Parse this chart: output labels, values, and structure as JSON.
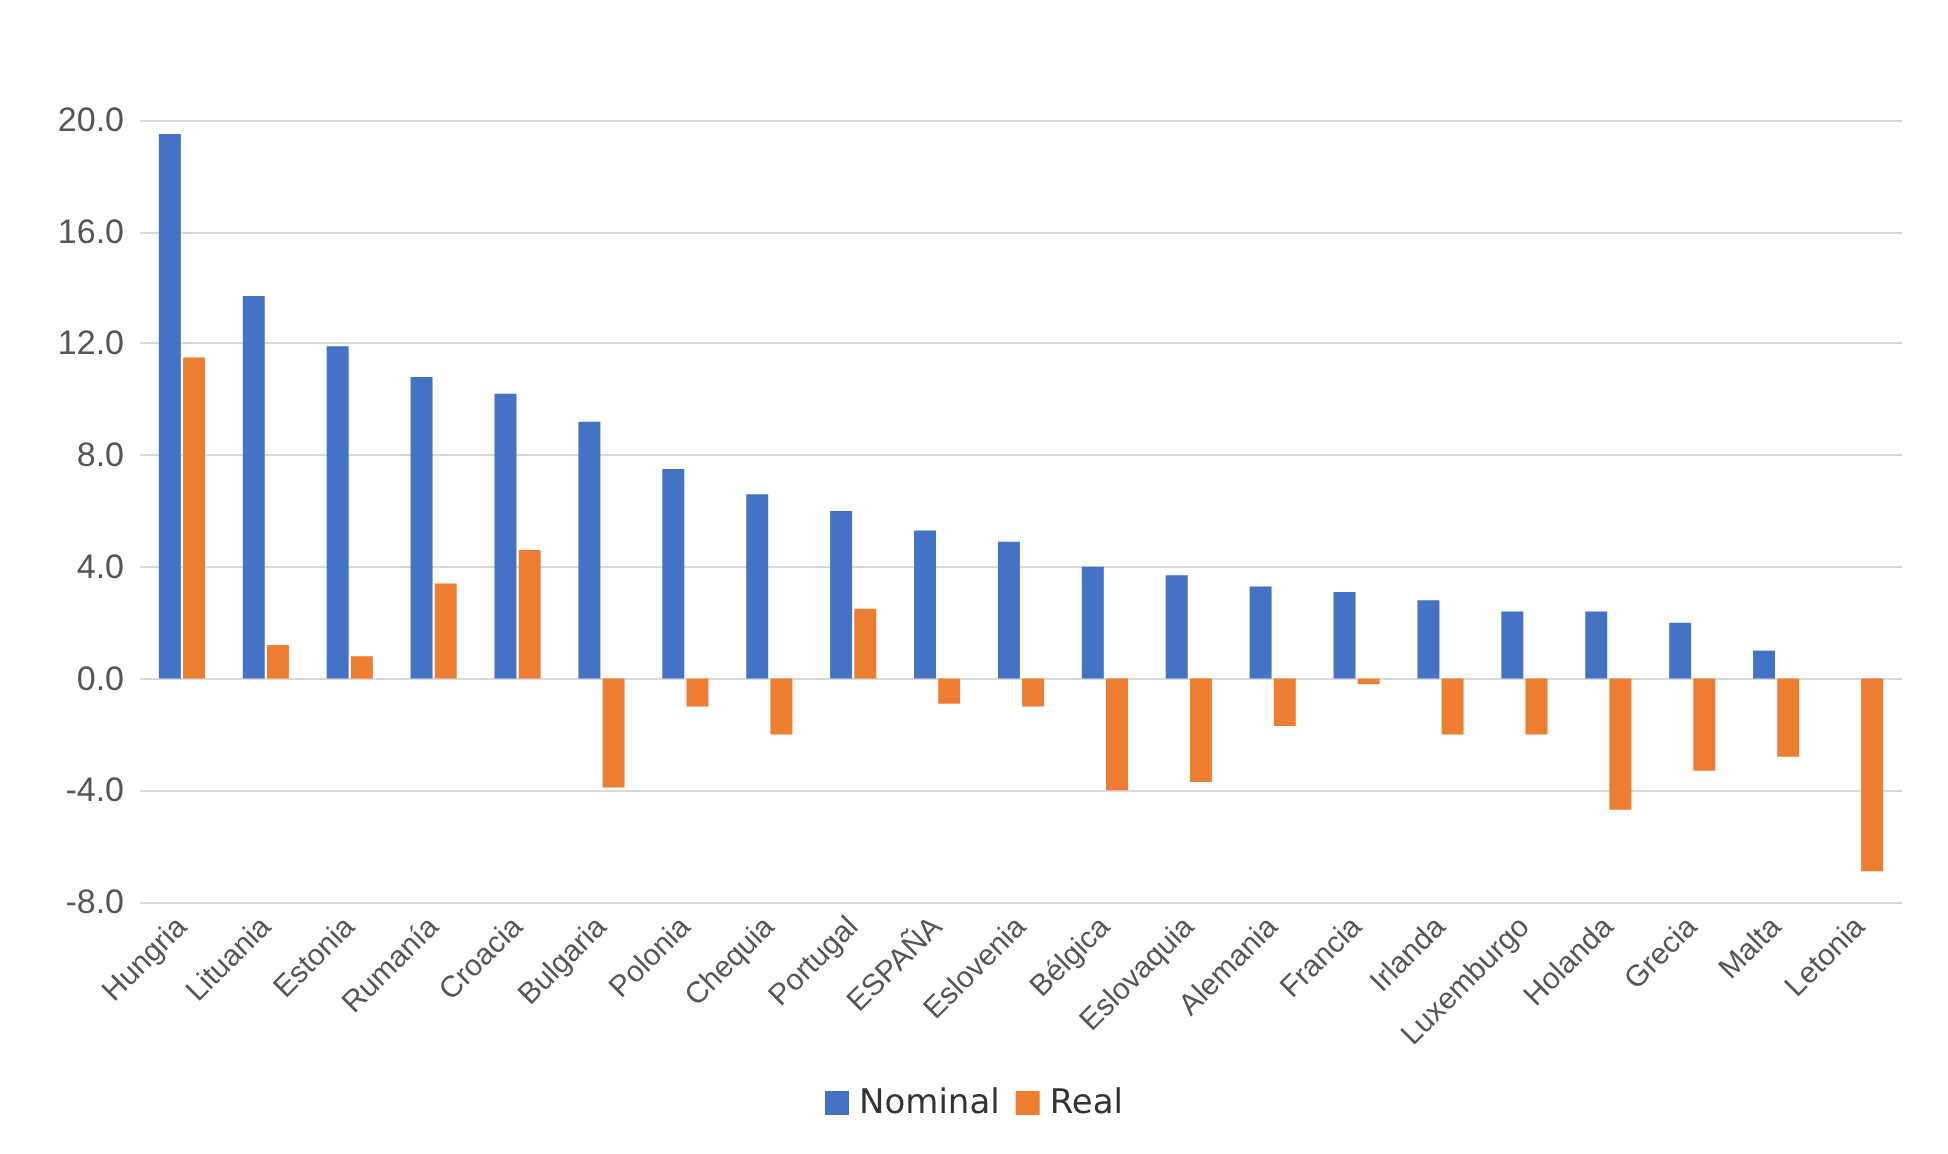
{
  "chart_data": {
    "type": "bar",
    "categories": [
      "Hungria",
      "Lituania",
      "Estonia",
      "Rumanía",
      "Croacia",
      "Bulgaria",
      "Polonia",
      "Chequia",
      "Portugal",
      "ESPAÑA",
      "Eslovenia",
      "Bélgica",
      "Eslovaquia",
      "Alemania",
      "Francia",
      "Irlanda",
      "Luxemburgo",
      "Holanda",
      "Grecia",
      "Malta",
      "Letonia"
    ],
    "series": [
      {
        "name": "Nominal",
        "color": "#4472c4",
        "values": [
          19.5,
          13.7,
          11.9,
          10.8,
          10.2,
          9.2,
          7.5,
          6.6,
          6.0,
          5.3,
          4.9,
          4.0,
          3.7,
          3.3,
          3.1,
          2.8,
          2.4,
          2.4,
          2.0,
          1.0,
          null
        ]
      },
      {
        "name": "Real",
        "color": "#ed7d31",
        "values": [
          11.5,
          1.2,
          0.8,
          3.4,
          4.6,
          -3.9,
          -1.0,
          -2.0,
          2.5,
          -0.9,
          -1.0,
          -4.0,
          -3.7,
          -1.7,
          -0.2,
          -2.0,
          -2.0,
          -4.7,
          -3.3,
          -2.8,
          -6.9
        ]
      }
    ],
    "ylim": [
      -8,
      20
    ],
    "yticks": [
      {
        "value": -8,
        "label": "-8.0"
      },
      {
        "value": -4,
        "label": "-4.0"
      },
      {
        "value": 0,
        "label": "0.0"
      },
      {
        "value": 4,
        "label": "4.0"
      },
      {
        "value": 8,
        "label": "8.0"
      },
      {
        "value": 12,
        "label": "12.0"
      },
      {
        "value": 16,
        "label": "16.0"
      },
      {
        "value": 20,
        "label": "20.0"
      }
    ],
    "grid": "y",
    "legend": "bottom"
  }
}
